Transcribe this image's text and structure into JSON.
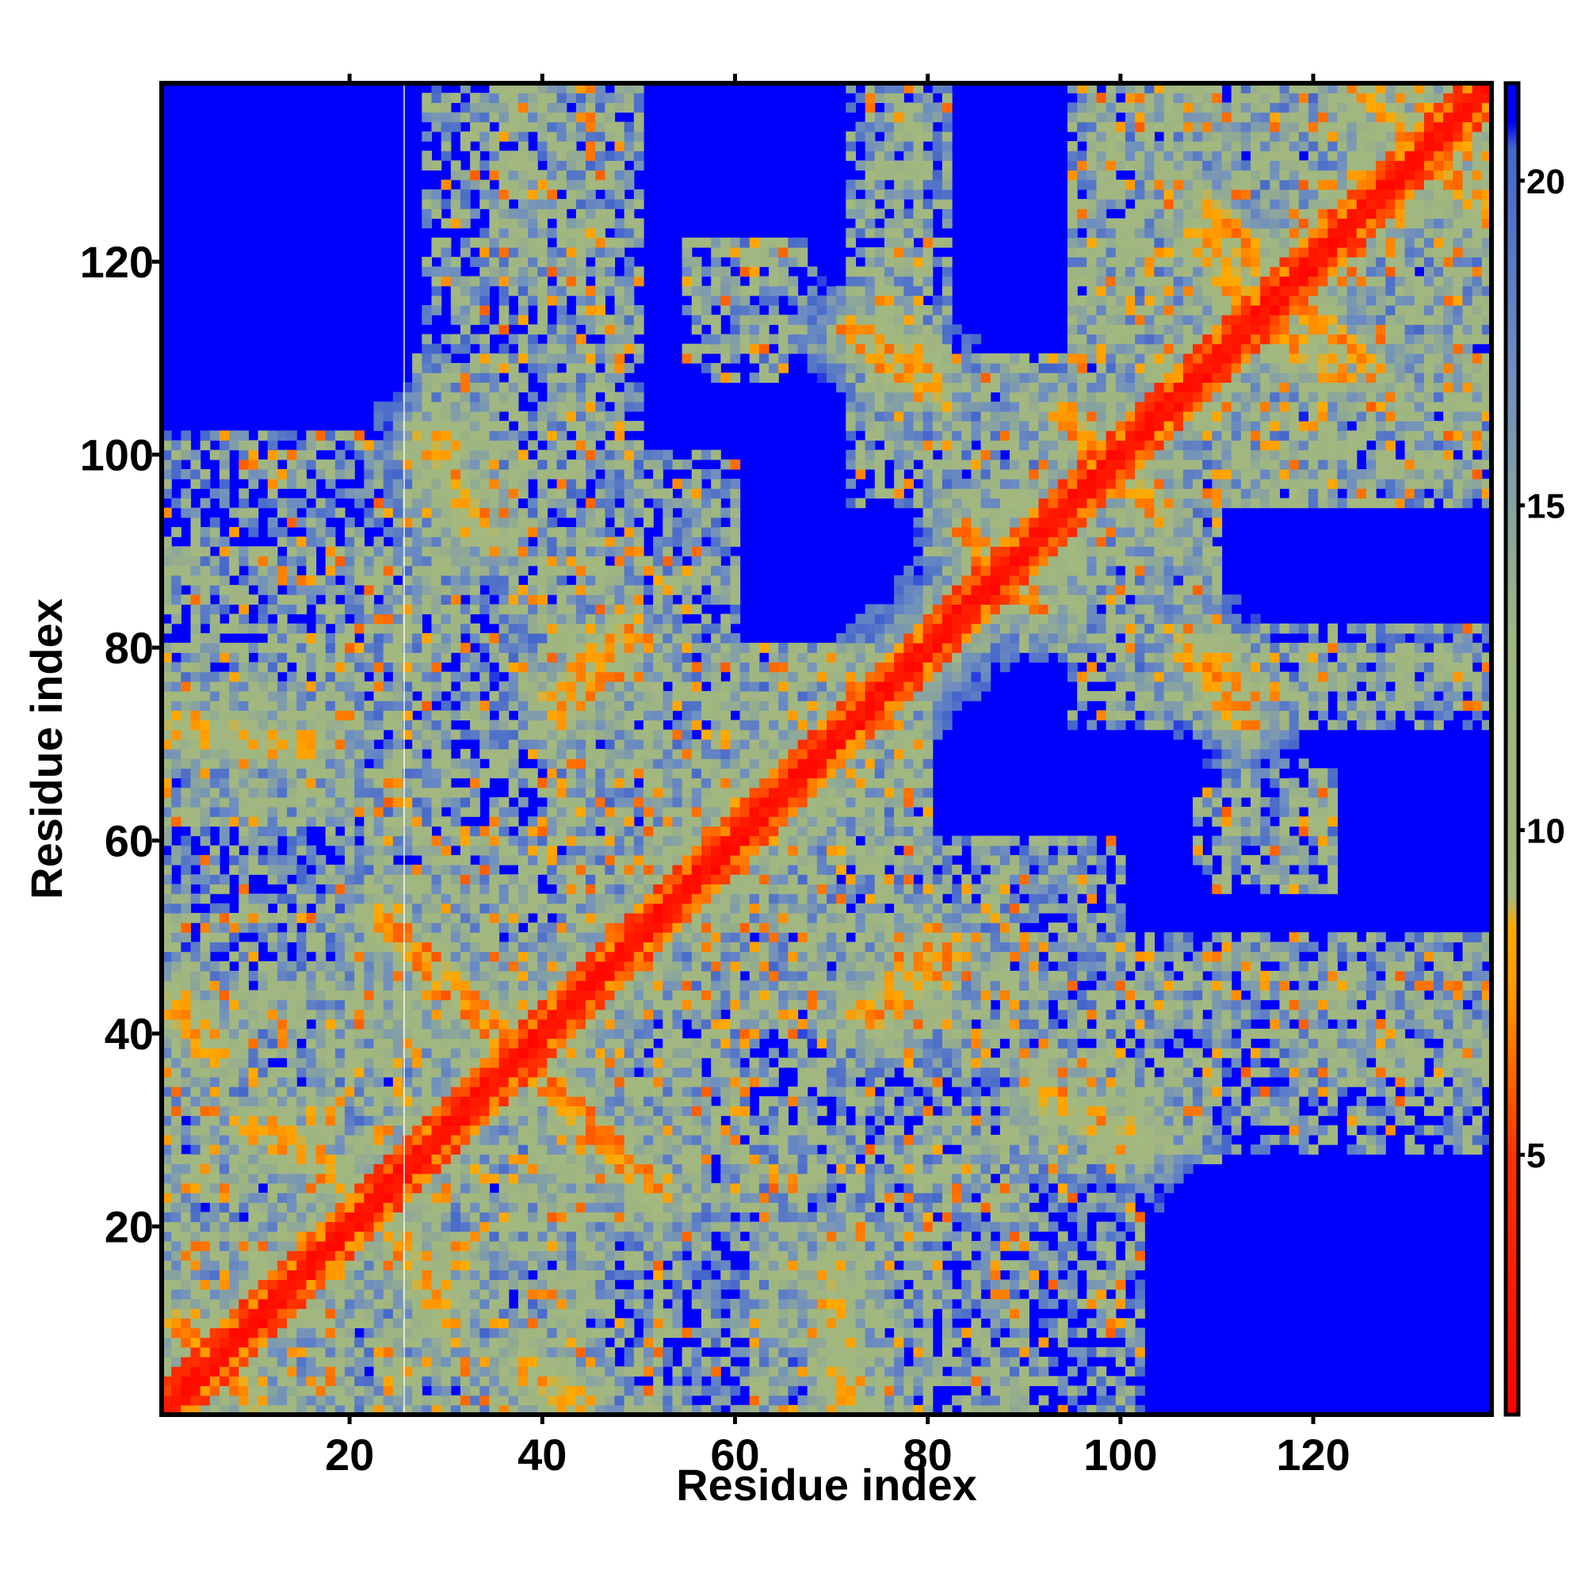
{
  "chart_data": {
    "type": "heatmap",
    "title": "",
    "xlabel": "Residue index",
    "ylabel": "Residue index",
    "n_residues": 138,
    "xlim": [
      1,
      138
    ],
    "ylim": [
      1,
      138
    ],
    "x_ticks": [
      20,
      40,
      60,
      80,
      100,
      120
    ],
    "y_ticks": [
      20,
      40,
      60,
      80,
      100,
      120
    ],
    "grid": false,
    "legend": "none",
    "colorbar": {
      "placement": "right",
      "range": [
        1,
        21.5
      ],
      "ticks": [
        5,
        10,
        15,
        20
      ],
      "stops": [
        {
          "value": 1.0,
          "color": "#ff0000"
        },
        {
          "value": 5.0,
          "color": "#ff3300"
        },
        {
          "value": 7.5,
          "color": "#ff9900"
        },
        {
          "value": 8.5,
          "color": "#ffaa00"
        },
        {
          "value": 9.0,
          "color": "#a4b97e"
        },
        {
          "value": 13.0,
          "color": "#9fb582"
        },
        {
          "value": 17.0,
          "color": "#6f8fc0"
        },
        {
          "value": 20.5,
          "color": "#4466cc"
        },
        {
          "value": 20.9,
          "color": "#0000ff"
        }
      ]
    },
    "value_unit": "distance",
    "max_value": 21,
    "contact_bands": [
      {
        "kind": "parallel",
        "a_start": 1,
        "b_start": 1,
        "length": 138,
        "strength": 1.0
      },
      {
        "kind": "antiparallel",
        "i0": 25,
        "j0": 50,
        "i1": 34,
        "j1": 41,
        "strength": 0.85
      },
      {
        "kind": "antiparallel",
        "i0": 40,
        "j0": 36,
        "i1": 52,
        "j1": 23,
        "strength": 0.85
      },
      {
        "kind": "antiparallel",
        "i0": 41,
        "j0": 75,
        "i1": 48,
        "j1": 82,
        "strength": 0.75
      },
      {
        "kind": "antiparallel",
        "i0": 58,
        "j0": 56,
        "i1": 68,
        "j1": 66,
        "strength": 0.9
      },
      {
        "kind": "antiparallel",
        "i0": 73,
        "j0": 42,
        "i1": 81,
        "j1": 49,
        "strength": 0.75
      },
      {
        "kind": "antiparallel",
        "i0": 72,
        "j0": 113,
        "i1": 79,
        "j1": 107,
        "strength": 0.75
      },
      {
        "kind": "antiparallel",
        "i0": 84,
        "j0": 92,
        "i1": 89,
        "j1": 86,
        "strength": 0.8
      },
      {
        "kind": "antiparallel",
        "i0": 96,
        "j0": 102,
        "i1": 104,
        "j1": 94,
        "strength": 0.8
      },
      {
        "kind": "antiparallel",
        "i0": 107,
        "j0": 81,
        "i1": 113,
        "j1": 75,
        "strength": 0.75
      },
      {
        "kind": "antiparallel",
        "i0": 109,
        "j0": 126,
        "i1": 115,
        "j1": 119,
        "strength": 0.75
      },
      {
        "kind": "antiparallel",
        "i0": 117,
        "j0": 112,
        "i1": 123,
        "j1": 108,
        "strength": 0.75
      },
      {
        "kind": "antiparallel",
        "i0": 125,
        "j0": 138,
        "i1": 135,
        "j1": 128,
        "strength": 0.8
      },
      {
        "kind": "antiparallel",
        "i0": 2,
        "j0": 10,
        "i1": 10,
        "j1": 2,
        "strength": 0.8
      },
      {
        "kind": "antiparallel",
        "i0": 2,
        "j0": 42,
        "i1": 6,
        "j1": 38,
        "strength": 0.65
      },
      {
        "kind": "antiparallel",
        "i0": 10,
        "j0": 30,
        "i1": 18,
        "j1": 26,
        "strength": 0.6
      },
      {
        "kind": "antiparallel",
        "i0": 26,
        "j0": 18,
        "i1": 30,
        "j1": 12,
        "strength": 0.65
      },
      {
        "kind": "antiparallel",
        "i0": 38,
        "j0": 6,
        "i1": 44,
        "j1": 2,
        "strength": 0.6
      },
      {
        "kind": "antiparallel",
        "i0": 2,
        "j0": 72,
        "i1": 16,
        "j1": 70,
        "strength": 0.55
      },
      {
        "kind": "antiparallel",
        "i0": 28,
        "j0": 102,
        "i1": 34,
        "j1": 92,
        "strength": 0.6
      },
      {
        "kind": "antiparallel",
        "i0": 92,
        "j0": 32,
        "i1": 102,
        "j1": 30,
        "strength": 0.55
      }
    ],
    "diffuse_regions": [
      {
        "x": [
          1,
          45
        ],
        "y": [
          1,
          52
        ],
        "level": 0.55
      },
      {
        "x": [
          22,
          60
        ],
        "y": [
          20,
          100
        ],
        "level": 0.45
      },
      {
        "x": [
          28,
          48
        ],
        "y": [
          95,
          138
        ],
        "level": 0.4
      },
      {
        "x": [
          1,
          30
        ],
        "y": [
          62,
          80
        ],
        "level": 0.45
      },
      {
        "x": [
          1,
          25
        ],
        "y": [
          88,
          102
        ],
        "level": 0.35
      },
      {
        "x": [
          52,
          90
        ],
        "y": [
          1,
          30
        ],
        "level": 0.45
      },
      {
        "x": [
          55,
          80
        ],
        "y": [
          40,
          80
        ],
        "level": 0.45
      },
      {
        "x": [
          72,
          82
        ],
        "y": [
          95,
          138
        ],
        "level": 0.35
      },
      {
        "x": [
          55,
          65
        ],
        "y": [
          108,
          122
        ],
        "level": 0.3
      },
      {
        "x": [
          75,
          138
        ],
        "y": [
          40,
          50
        ],
        "level": 0.4
      },
      {
        "x": [
          90,
          110
        ],
        "y": [
          27,
          38
        ],
        "level": 0.45
      },
      {
        "x": [
          85,
          110
        ],
        "y": [
          80,
          110
        ],
        "level": 0.45
      },
      {
        "x": [
          95,
          138
        ],
        "y": [
          95,
          138
        ],
        "level": 0.5
      },
      {
        "x": [
          100,
          138
        ],
        "y": [
          74,
          80
        ],
        "level": 0.4
      },
      {
        "x": [
          110,
          122
        ],
        "y": [
          56,
          68
        ],
        "level": 0.3
      },
      {
        "x": [
          118,
          138
        ],
        "y": [
          35,
          45
        ],
        "level": 0.4
      }
    ]
  }
}
